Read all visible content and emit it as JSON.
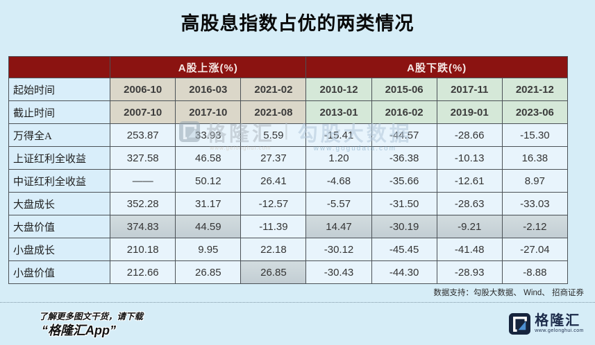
{
  "page": {
    "title": "高股息指数占优的两类情况",
    "background_color": "#d6edf7"
  },
  "table": {
    "header": {
      "corner_label": "",
      "sections": [
        {
          "label": "A股上涨(%)",
          "colspan": 3
        },
        {
          "label": "A股下跌(%)",
          "colspan": 4
        }
      ],
      "background_color": "#8b1311",
      "text_color": "#f6e9e6"
    },
    "date_rows": [
      {
        "label": "起始时间",
        "up": [
          "2006-10",
          "2016-03",
          "2021-02"
        ],
        "down": [
          "2010-12",
          "2015-06",
          "2017-11",
          "2021-12"
        ]
      },
      {
        "label": "截止时间",
        "up": [
          "2007-10",
          "2017-10",
          "2021-08"
        ],
        "down": [
          "2013-01",
          "2016-02",
          "2019-01",
          "2023-06"
        ]
      }
    ],
    "data_rows": [
      {
        "label": "万得全A",
        "values": [
          "253.87",
          "33.93",
          "5.59",
          "-15.41",
          "-44.57",
          "-28.66",
          "-15.30"
        ],
        "highlight": []
      },
      {
        "label": "上证红利全收益",
        "values": [
          "327.58",
          "46.58",
          "27.37",
          "1.20",
          "-36.38",
          "-10.13",
          "16.38"
        ],
        "highlight": []
      },
      {
        "label": "中证红利全收益",
        "values": [
          "——",
          "50.12",
          "26.41",
          "-4.68",
          "-35.66",
          "-12.61",
          "8.97"
        ],
        "highlight": []
      },
      {
        "label": "大盘成长",
        "values": [
          "352.28",
          "31.17",
          "-12.57",
          "-5.57",
          "-31.50",
          "-28.63",
          "-33.03"
        ],
        "highlight": []
      },
      {
        "label": "大盘价值",
        "values": [
          "374.83",
          "44.59",
          "-11.39",
          "14.47",
          "-30.19",
          "-9.21",
          "-2.12"
        ],
        "highlight": [
          0,
          1,
          3,
          4,
          5,
          6
        ]
      },
      {
        "label": "小盘成长",
        "values": [
          "210.18",
          "9.95",
          "22.18",
          "-30.12",
          "-45.45",
          "-41.48",
          "-27.04"
        ],
        "highlight": []
      },
      {
        "label": "小盘价值",
        "values": [
          "212.66",
          "26.85",
          "26.85",
          "-30.43",
          "-44.30",
          "-28.93",
          "-8.88"
        ],
        "highlight": [
          2
        ]
      }
    ],
    "colors": {
      "cell_up_dates": "#dbd7c9",
      "cell_down_dates": "#d5e8d8",
      "cell_data": "#e8f4fc",
      "cell_label": "#d9eefa",
      "cell_highlight": "#c8d3d8",
      "border": "#4b5156"
    }
  },
  "watermark": {
    "brand": "格隆汇",
    "brand_url": "www.gelonghui.com",
    "divider": "|",
    "partner": "勾股大数据",
    "partner_url": "www.gogudata.com"
  },
  "source_note": "数据支持：勾股大数据、 Wind、 招商证券",
  "footer": {
    "line1": "了解更多图文干货，请下载",
    "line2": "“格隆汇App”",
    "logo_name": "格隆汇",
    "logo_url": "www.gelonghui.com",
    "logo_color": "#1c2b4a"
  }
}
